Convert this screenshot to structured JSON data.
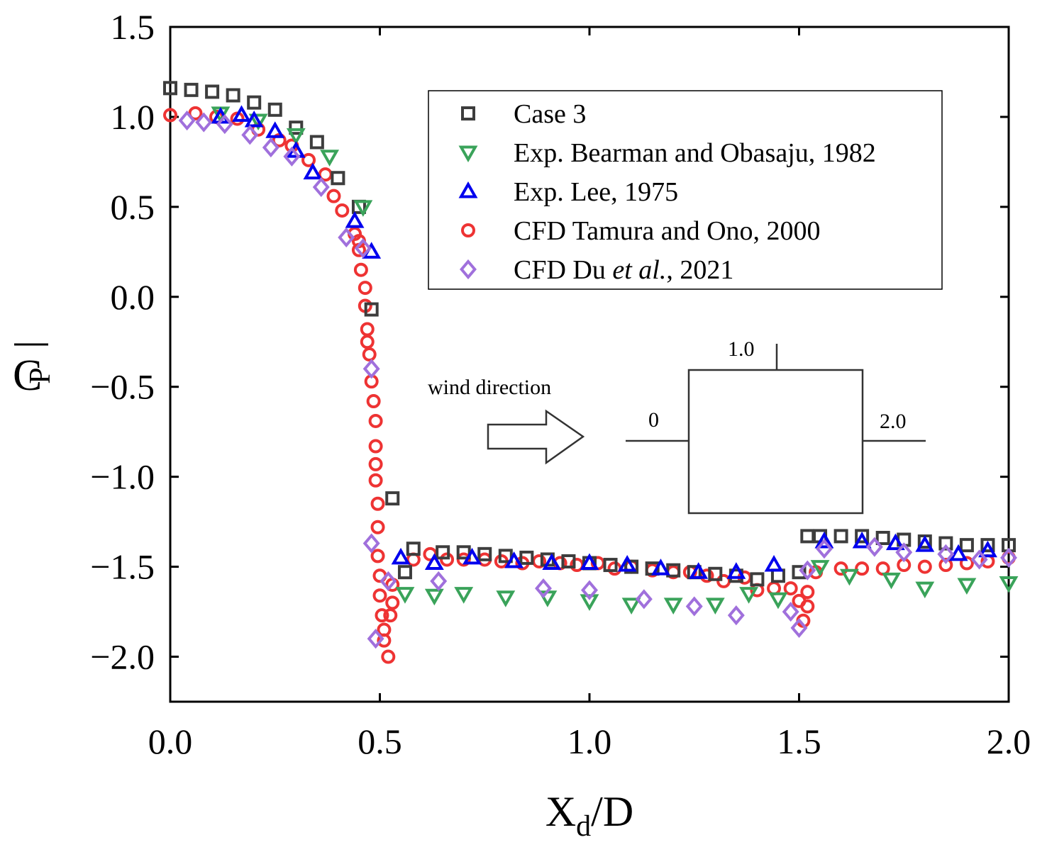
{
  "chart_data": {
    "type": "scatter",
    "title": "",
    "xlabel": "Xd/D",
    "xlabel_main": "X",
    "xlabel_sub": "d",
    "xlabel_tail": "/D",
    "ylabel_main": "C",
    "ylabel_sub": "P",
    "xlim": [
      0.0,
      2.0
    ],
    "ylim": [
      -2.25,
      1.5
    ],
    "xticks": [
      {
        "value": 0.0,
        "label": "0.0"
      },
      {
        "value": 0.5,
        "label": "0.5"
      },
      {
        "value": 1.0,
        "label": "1.0"
      },
      {
        "value": 1.5,
        "label": "1.5"
      },
      {
        "value": 2.0,
        "label": "2.0"
      }
    ],
    "yticks": [
      {
        "value": 1.5,
        "label": "1.5"
      },
      {
        "value": 1.0,
        "label": "1.0"
      },
      {
        "value": 0.5,
        "label": "0.5"
      },
      {
        "value": 0.0,
        "label": "0.0"
      },
      {
        "value": -0.5,
        "label": "−0.5"
      },
      {
        "value": -1.0,
        "label": "−1.0"
      },
      {
        "value": -1.5,
        "label": "−1.5"
      },
      {
        "value": -2.0,
        "label": "−2.0"
      }
    ],
    "legend_position": "top-right",
    "series": [
      {
        "name": "Case 3",
        "label_parts": [
          "Case 3"
        ],
        "marker": "square",
        "color": "#3d3d3d",
        "points": [
          [
            0.0,
            1.16
          ],
          [
            0.05,
            1.15
          ],
          [
            0.1,
            1.14
          ],
          [
            0.15,
            1.12
          ],
          [
            0.2,
            1.08
          ],
          [
            0.25,
            1.04
          ],
          [
            0.3,
            0.94
          ],
          [
            0.35,
            0.86
          ],
          [
            0.4,
            0.66
          ],
          [
            0.45,
            0.5
          ],
          [
            0.48,
            -0.07
          ],
          [
            0.53,
            -1.12
          ],
          [
            0.56,
            -1.53
          ],
          [
            0.58,
            -1.4
          ],
          [
            0.65,
            -1.42
          ],
          [
            0.7,
            -1.42
          ],
          [
            0.75,
            -1.43
          ],
          [
            0.8,
            -1.44
          ],
          [
            0.85,
            -1.45
          ],
          [
            0.9,
            -1.46
          ],
          [
            0.95,
            -1.47
          ],
          [
            1.0,
            -1.48
          ],
          [
            1.05,
            -1.49
          ],
          [
            1.1,
            -1.5
          ],
          [
            1.15,
            -1.51
          ],
          [
            1.2,
            -1.52
          ],
          [
            1.25,
            -1.53
          ],
          [
            1.3,
            -1.54
          ],
          [
            1.35,
            -1.55
          ],
          [
            1.4,
            -1.57
          ],
          [
            1.45,
            -1.55
          ],
          [
            1.5,
            -1.53
          ],
          [
            1.52,
            -1.33
          ],
          [
            1.55,
            -1.33
          ],
          [
            1.6,
            -1.33
          ],
          [
            1.65,
            -1.33
          ],
          [
            1.7,
            -1.34
          ],
          [
            1.75,
            -1.35
          ],
          [
            1.8,
            -1.36
          ],
          [
            1.85,
            -1.37
          ],
          [
            1.9,
            -1.38
          ],
          [
            1.95,
            -1.38
          ],
          [
            2.0,
            -1.38
          ]
        ]
      },
      {
        "name": "Exp. Bearman and Obasaju, 1982",
        "label_parts": [
          "Exp. Bearman and Obasaju, 1982"
        ],
        "marker": "triangle-down",
        "color": "#3aa35a",
        "points": [
          [
            0.12,
            1.02
          ],
          [
            0.21,
            0.98
          ],
          [
            0.3,
            0.9
          ],
          [
            0.38,
            0.78
          ],
          [
            0.46,
            0.5
          ],
          [
            0.56,
            -1.65
          ],
          [
            0.63,
            -1.66
          ],
          [
            0.7,
            -1.65
          ],
          [
            0.8,
            -1.67
          ],
          [
            0.9,
            -1.67
          ],
          [
            1.0,
            -1.69
          ],
          [
            1.1,
            -1.71
          ],
          [
            1.2,
            -1.71
          ],
          [
            1.3,
            -1.71
          ],
          [
            1.38,
            -1.65
          ],
          [
            1.45,
            -1.68
          ],
          [
            1.55,
            -1.5
          ],
          [
            1.62,
            -1.55
          ],
          [
            1.72,
            -1.57
          ],
          [
            1.8,
            -1.62
          ],
          [
            1.9,
            -1.6
          ],
          [
            2.0,
            -1.59
          ]
        ]
      },
      {
        "name": "Exp. Lee, 1975",
        "label_parts": [
          "Exp. Lee, 1975"
        ],
        "marker": "triangle-up",
        "color": "#0000ee",
        "points": [
          [
            0.12,
            1.0
          ],
          [
            0.17,
            1.01
          ],
          [
            0.2,
            0.98
          ],
          [
            0.25,
            0.92
          ],
          [
            0.3,
            0.81
          ],
          [
            0.34,
            0.69
          ],
          [
            0.44,
            0.42
          ],
          [
            0.48,
            0.25
          ],
          [
            0.55,
            -1.45
          ],
          [
            0.63,
            -1.48
          ],
          [
            0.72,
            -1.45
          ],
          [
            0.82,
            -1.47
          ],
          [
            0.91,
            -1.48
          ],
          [
            1.0,
            -1.48
          ],
          [
            1.09,
            -1.49
          ],
          [
            1.17,
            -1.51
          ],
          [
            1.26,
            -1.53
          ],
          [
            1.35,
            -1.53
          ],
          [
            1.44,
            -1.49
          ],
          [
            1.56,
            -1.36
          ],
          [
            1.65,
            -1.36
          ],
          [
            1.73,
            -1.37
          ],
          [
            1.8,
            -1.38
          ],
          [
            1.88,
            -1.43
          ],
          [
            1.95,
            -1.41
          ]
        ]
      },
      {
        "name": "CFD Tamura and Ono, 2000",
        "label_parts": [
          "CFD Tamura and Ono, 2000"
        ],
        "marker": "circle",
        "color": "#ee3333",
        "points": [
          [
            0.0,
            1.01
          ],
          [
            0.06,
            1.02
          ],
          [
            0.11,
            1.0
          ],
          [
            0.16,
            0.99
          ],
          [
            0.21,
            0.93
          ],
          [
            0.26,
            0.87
          ],
          [
            0.29,
            0.84
          ],
          [
            0.33,
            0.76
          ],
          [
            0.37,
            0.68
          ],
          [
            0.39,
            0.56
          ],
          [
            0.41,
            0.48
          ],
          [
            0.44,
            0.35
          ],
          [
            0.45,
            0.31
          ],
          [
            0.45,
            0.26
          ],
          [
            0.455,
            0.15
          ],
          [
            0.465,
            0.05
          ],
          [
            0.465,
            -0.05
          ],
          [
            0.47,
            -0.18
          ],
          [
            0.47,
            -0.25
          ],
          [
            0.475,
            -0.32
          ],
          [
            0.48,
            -0.47
          ],
          [
            0.485,
            -0.58
          ],
          [
            0.49,
            -0.69
          ],
          [
            0.49,
            -0.83
          ],
          [
            0.49,
            -0.93
          ],
          [
            0.49,
            -1.02
          ],
          [
            0.495,
            -1.15
          ],
          [
            0.495,
            -1.28
          ],
          [
            0.495,
            -1.44
          ],
          [
            0.5,
            -1.55
          ],
          [
            0.5,
            -1.66
          ],
          [
            0.505,
            -1.77
          ],
          [
            0.51,
            -1.85
          ],
          [
            0.51,
            -1.91
          ],
          [
            0.52,
            -2.0
          ],
          [
            0.525,
            -1.77
          ],
          [
            0.53,
            -1.7
          ],
          [
            0.53,
            -1.6
          ],
          [
            0.58,
            -1.46
          ],
          [
            0.62,
            -1.43
          ],
          [
            0.66,
            -1.46
          ],
          [
            0.7,
            -1.46
          ],
          [
            0.75,
            -1.46
          ],
          [
            0.79,
            -1.47
          ],
          [
            0.84,
            -1.48
          ],
          [
            0.88,
            -1.47
          ],
          [
            0.93,
            -1.48
          ],
          [
            0.97,
            -1.49
          ],
          [
            1.02,
            -1.48
          ],
          [
            1.06,
            -1.51
          ],
          [
            1.1,
            -1.5
          ],
          [
            1.15,
            -1.52
          ],
          [
            1.2,
            -1.53
          ],
          [
            1.24,
            -1.53
          ],
          [
            1.28,
            -1.55
          ],
          [
            1.32,
            -1.58
          ],
          [
            1.37,
            -1.56
          ],
          [
            1.4,
            -1.63
          ],
          [
            1.44,
            -1.62
          ],
          [
            1.48,
            -1.62
          ],
          [
            1.5,
            -1.69
          ],
          [
            1.51,
            -1.8
          ],
          [
            1.52,
            -1.72
          ],
          [
            1.52,
            -1.64
          ],
          [
            1.54,
            -1.53
          ],
          [
            1.6,
            -1.51
          ],
          [
            1.65,
            -1.51
          ],
          [
            1.7,
            -1.51
          ],
          [
            1.75,
            -1.49
          ],
          [
            1.8,
            -1.5
          ],
          [
            1.85,
            -1.49
          ],
          [
            1.9,
            -1.48
          ],
          [
            1.95,
            -1.47
          ],
          [
            2.0,
            -1.45
          ]
        ]
      },
      {
        "name": "CFD Du et al., 2021",
        "label_parts": [
          "CFD Du ",
          "et al.",
          ", 2021"
        ],
        "marker": "diamond",
        "color": "#a070dc",
        "points": [
          [
            0.04,
            0.98
          ],
          [
            0.08,
            0.97
          ],
          [
            0.13,
            0.96
          ],
          [
            0.19,
            0.9
          ],
          [
            0.24,
            0.83
          ],
          [
            0.29,
            0.78
          ],
          [
            0.36,
            0.61
          ],
          [
            0.42,
            0.33
          ],
          [
            0.46,
            0.27
          ],
          [
            0.48,
            -0.4
          ],
          [
            0.48,
            -1.37
          ],
          [
            0.49,
            -1.9
          ],
          [
            0.52,
            -1.58
          ],
          [
            0.64,
            -1.58
          ],
          [
            0.89,
            -1.62
          ],
          [
            1.0,
            -1.63
          ],
          [
            1.13,
            -1.68
          ],
          [
            1.25,
            -1.72
          ],
          [
            1.35,
            -1.77
          ],
          [
            1.48,
            -1.75
          ],
          [
            1.5,
            -1.84
          ],
          [
            1.52,
            -1.52
          ],
          [
            1.56,
            -1.4
          ],
          [
            1.68,
            -1.39
          ],
          [
            1.75,
            -1.42
          ],
          [
            1.85,
            -1.43
          ],
          [
            1.93,
            -1.46
          ],
          [
            2.0,
            -1.45
          ]
        ]
      }
    ],
    "inset": {
      "wind_label": "wind direction",
      "start_label": "0",
      "top_label": "1.0",
      "end_label": "2.0"
    }
  }
}
